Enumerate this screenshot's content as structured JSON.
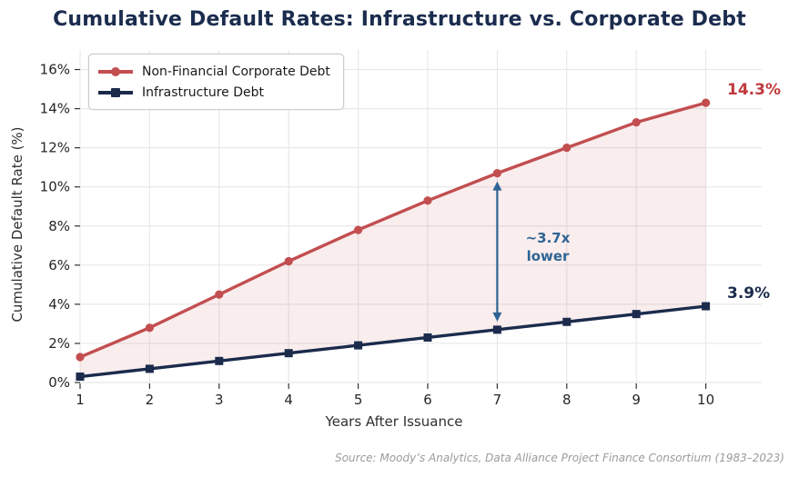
{
  "title": "Cumulative Default Rates: Infrastructure vs. Corporate Debt",
  "source": "Source: Moody’s Analytics, Data Alliance Project Finance Consortium (1983–2023)",
  "chart_data": {
    "type": "line",
    "x": [
      1,
      2,
      3,
      4,
      5,
      6,
      7,
      8,
      9,
      10
    ],
    "xticks": [
      "1",
      "2",
      "3",
      "4",
      "5",
      "6",
      "7",
      "8",
      "9",
      "10"
    ],
    "yticks": [
      "0%",
      "2%",
      "4%",
      "6%",
      "8%",
      "10%",
      "12%",
      "14%",
      "16%"
    ],
    "ytick_values": [
      0,
      2,
      4,
      6,
      8,
      10,
      12,
      14,
      16
    ],
    "ylim": [
      0,
      17
    ],
    "xlabel": "Years After Issuance",
    "ylabel": "Cumulative Default Rate (%)",
    "grid": true,
    "legend_position": "upper-left",
    "series": [
      {
        "name": "Non-Financial Corporate Debt",
        "color": "#C24E50",
        "marker": "circle",
        "values": [
          1.3,
          2.8,
          4.5,
          6.2,
          7.8,
          9.3,
          10.7,
          12.0,
          13.3,
          14.3
        ],
        "end_label": "14.3%"
      },
      {
        "name": "Infrastructure Debt",
        "color": "#1B2B4C",
        "marker": "square",
        "values": [
          0.3,
          0.7,
          1.1,
          1.5,
          1.9,
          2.3,
          2.7,
          3.1,
          3.5,
          3.9
        ],
        "end_label": "3.9%"
      }
    ],
    "fill_between_color": "rgba(194,78,82,0.10)",
    "annotation": {
      "text_line1": "~3.7x",
      "text_line2": "lower",
      "x": 7,
      "from_value": 2.7,
      "to_value": 10.7,
      "color": "#2F6494"
    }
  }
}
